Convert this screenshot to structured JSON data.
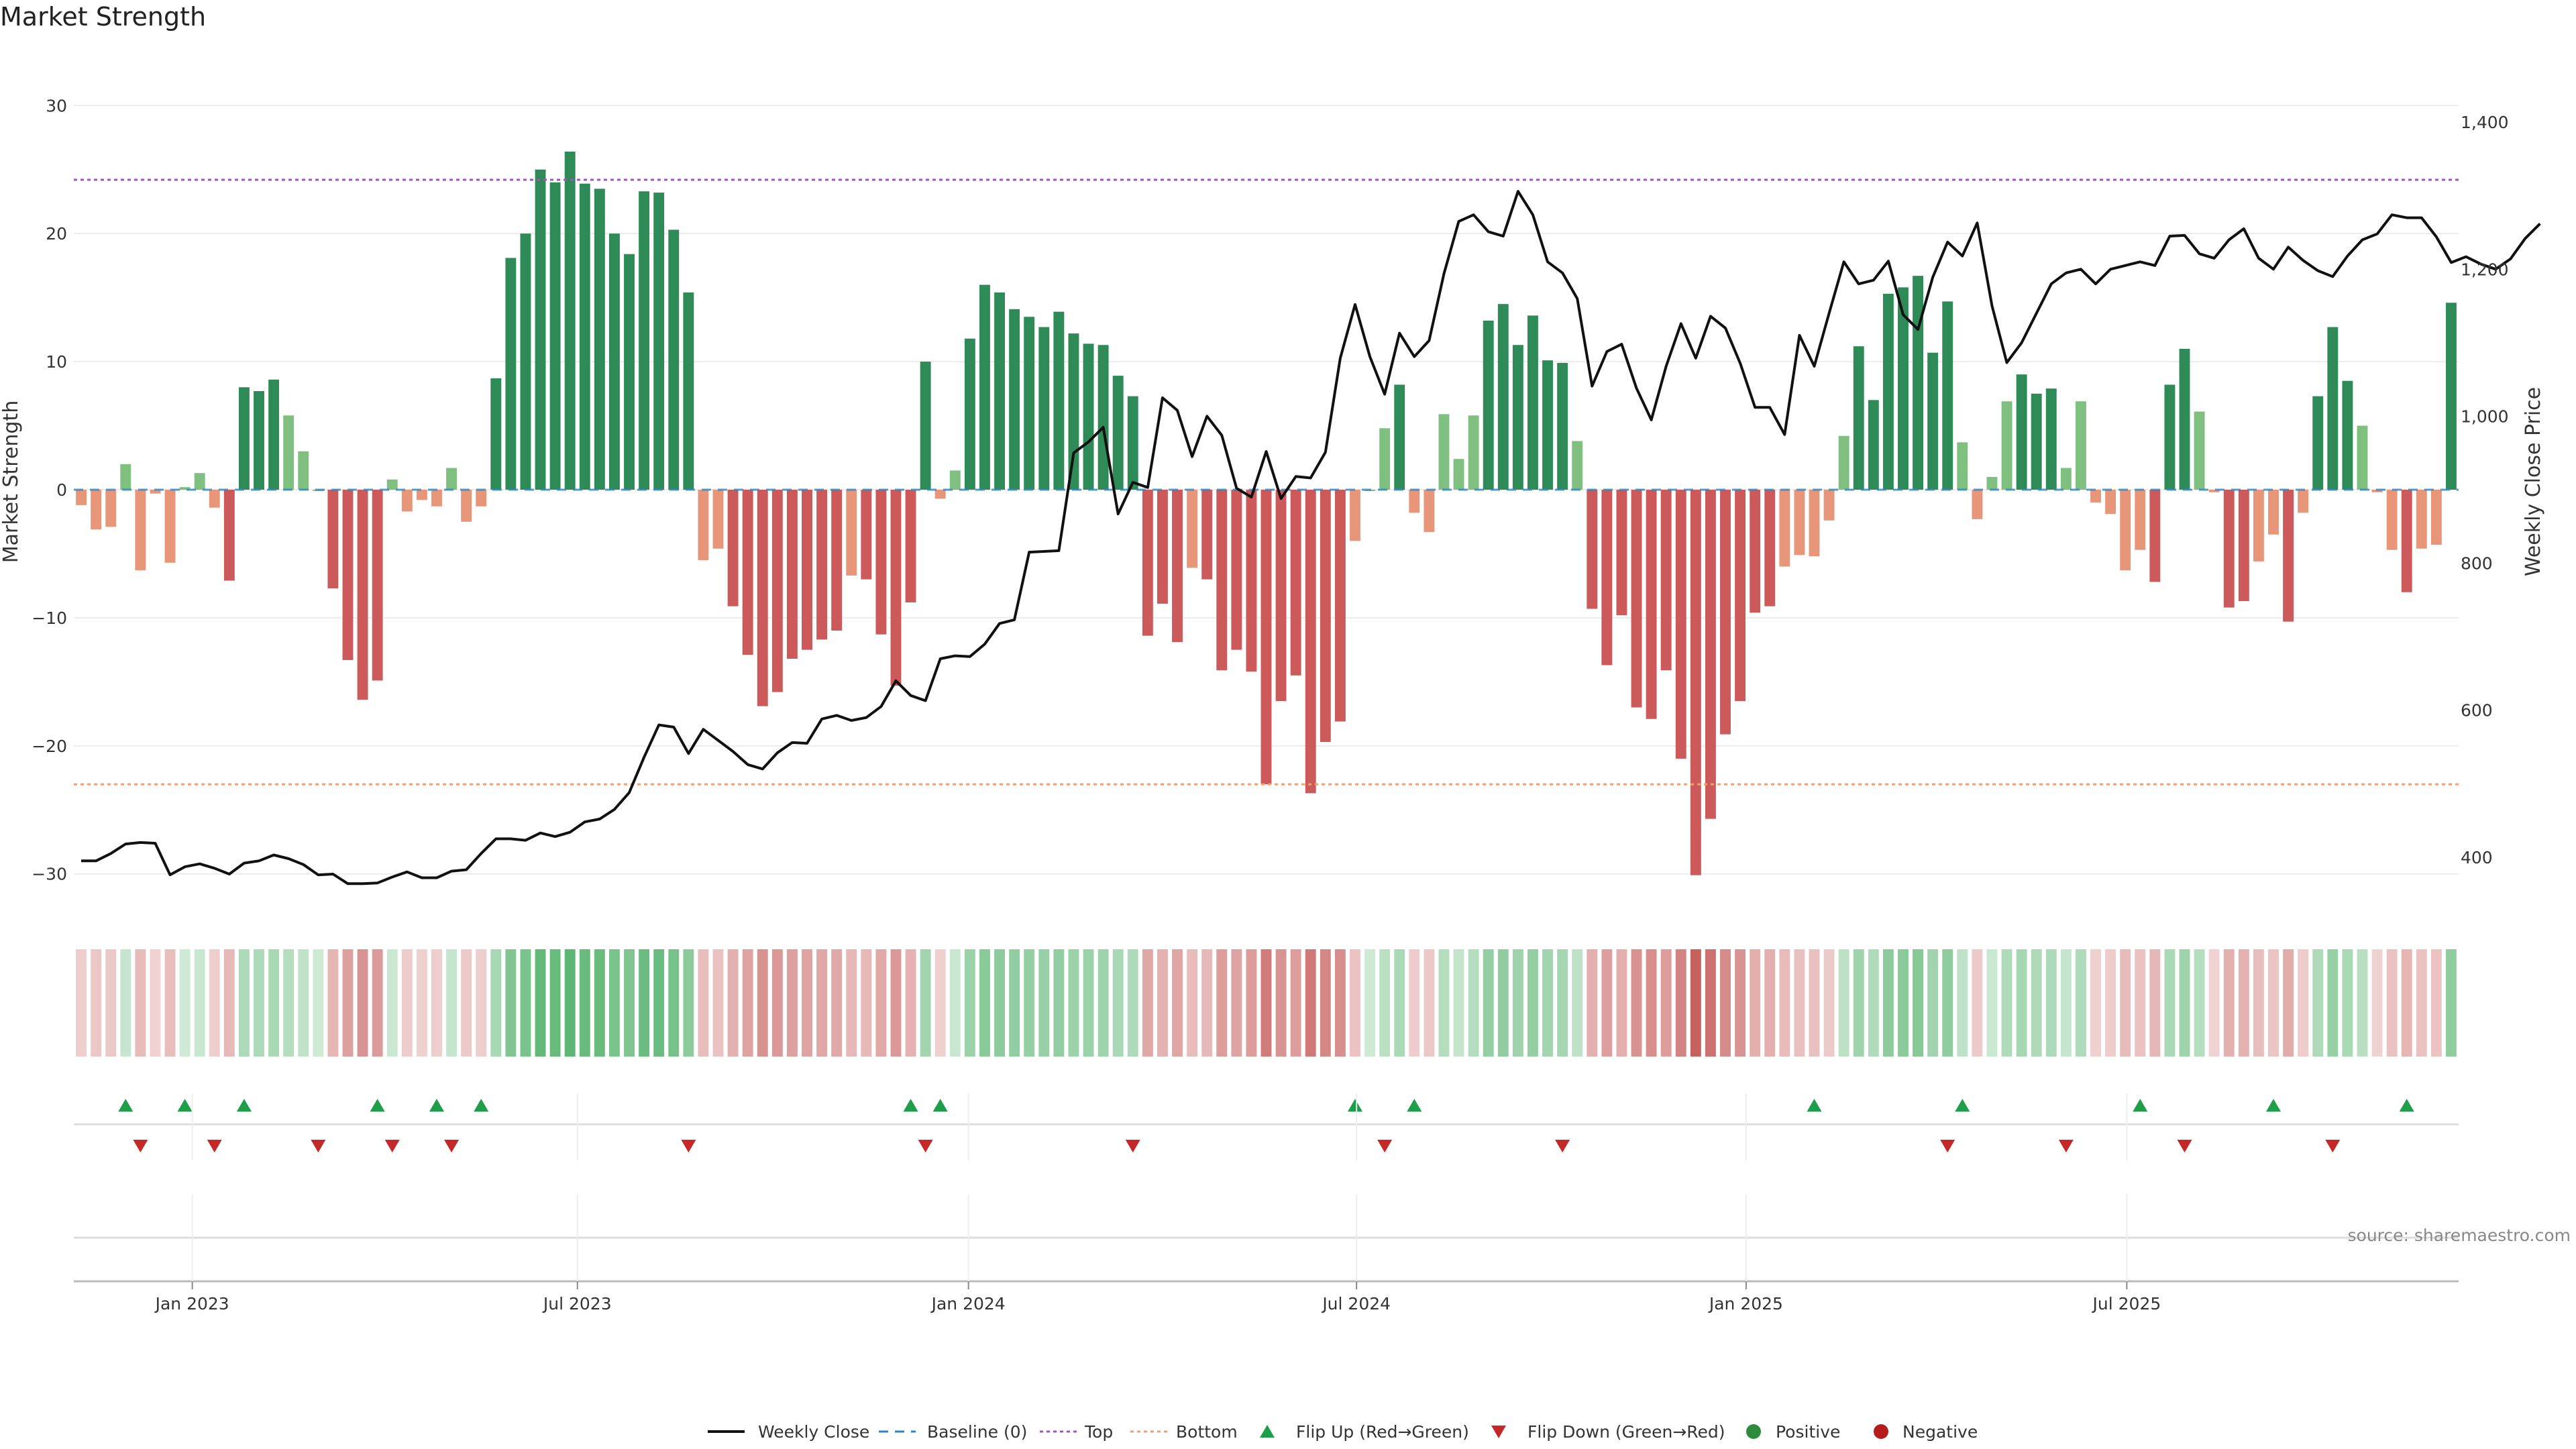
{
  "chart_data": {
    "title": "Market Strength",
    "type": "bar",
    "ylabel_left": "Market Strength",
    "ylabel_right": "Weekly Close Price",
    "ylim_left": [
      -33,
      33
    ],
    "ylim_right": [
      325,
      1475
    ],
    "yticks_left": [
      30,
      20,
      10,
      0,
      -10,
      -20,
      -30
    ],
    "yticks_left_labels": [
      "30",
      "20",
      "10",
      "0",
      "−10",
      "−20",
      "−30"
    ],
    "yticks_right": [
      1400,
      1200,
      1000,
      800,
      600,
      400
    ],
    "yticks_right_labels": [
      "1,400",
      "1,200",
      "1,000",
      "800",
      "600",
      "400"
    ],
    "x_tick_labels": [
      "Jan 2023",
      "Jul 2023",
      "Jan 2024",
      "Jul 2024",
      "Jan 2025",
      "Jul 2025"
    ],
    "x_tick_weeks": [
      8,
      34,
      60.4,
      86.6,
      112.9,
      138.6
    ],
    "top_line": 24.2,
    "bottom_line": -23,
    "strength_values": [
      -1.2,
      -3.1,
      -2.9,
      2.0,
      -6.3,
      -0.3,
      -5.7,
      0.2,
      1.3,
      -1.4,
      -7.1,
      8.0,
      7.7,
      8.6,
      5.8,
      3.0,
      0,
      -7.7,
      -13.3,
      -16.4,
      -14.9,
      0.8,
      -1.7,
      -0.8,
      -1.3,
      1.7,
      -2.5,
      -1.3,
      8.7,
      18.1,
      20.0,
      25.0,
      24.0,
      26.4,
      23.9,
      23.5,
      20.0,
      18.4,
      23.3,
      23.2,
      20.3,
      15.4,
      -5.5,
      -4.6,
      -9.1,
      -12.9,
      -16.9,
      -15.8,
      -13.2,
      -12.5,
      -11.7,
      -11.0,
      -6.7,
      -7.0,
      -11.3,
      -15.3,
      -8.8,
      10.0,
      -0.7,
      1.5,
      11.8,
      16.0,
      15.4,
      14.1,
      13.5,
      12.7,
      13.9,
      12.2,
      11.4,
      11.3,
      8.9,
      7.3,
      -11.4,
      -8.9,
      -11.9,
      -6.1,
      -7.0,
      -14.1,
      -12.5,
      -14.2,
      -23.0,
      -16.5,
      -14.5,
      -23.7,
      -19.7,
      -18.1,
      -4.0,
      0,
      4.8,
      8.2,
      -1.8,
      -3.3,
      5.9,
      2.4,
      5.8,
      13.2,
      14.5,
      11.3,
      13.6,
      10.1,
      9.9,
      3.8,
      -9.3,
      -13.7,
      -9.8,
      -17.0,
      -17.9,
      -14.1,
      -21.0,
      -30.1,
      -25.7,
      -19.1,
      -16.5,
      -9.6,
      -9.1,
      -6.0,
      -5.1,
      -5.2,
      -2.4,
      4.2,
      11.2,
      7.0,
      15.3,
      15.8,
      16.7,
      10.7,
      14.7,
      3.7,
      -2.3,
      1.0,
      6.9,
      9.0,
      7.5,
      7.9,
      1.7,
      6.9,
      -1.0,
      -1.9,
      -6.3,
      -4.7,
      -7.2,
      8.2,
      11.0,
      6.1,
      -0.2,
      -9.2,
      -8.7,
      -5.6,
      -3.5,
      -10.3,
      -1.8,
      7.3,
      12.7,
      8.5,
      5.0,
      -0.2,
      -4.7,
      -8.0,
      -4.6,
      -4.3,
      14.6
    ],
    "weekly_close": [
      395,
      395,
      405,
      418,
      420,
      419,
      376,
      387,
      391,
      385,
      377,
      392,
      395,
      403,
      398,
      390,
      376,
      377,
      364,
      364,
      365,
      373,
      380,
      372,
      372,
      381,
      383,
      405,
      425,
      425,
      423,
      433,
      428,
      434,
      448,
      452,
      465,
      488,
      536,
      580,
      577,
      541,
      574,
      559,
      544,
      526,
      520,
      542,
      556,
      555,
      588,
      593,
      586,
      590,
      605,
      640,
      620,
      613,
      670,
      674,
      673,
      690,
      718,
      723,
      815,
      816,
      817,
      950,
      965,
      985,
      867,
      910,
      903,
      1025,
      1008,
      945,
      1000,
      974,
      902,
      890,
      952,
      888,
      918,
      916,
      951,
      1079,
      1152,
      1081,
      1030,
      1113,
      1081,
      1103,
      1194,
      1265,
      1274,
      1251,
      1245,
      1306,
      1274,
      1210,
      1195,
      1160,
      1041,
      1088,
      1098,
      1038,
      995,
      1068,
      1126,
      1079,
      1136,
      1120,
      1072,
      1012,
      1012,
      975,
      1110,
      1068,
      1140,
      1210,
      1180,
      1185,
      1211,
      1138,
      1118,
      1189,
      1237,
      1218,
      1263,
      1150,
      1073,
      1100,
      1140,
      1180,
      1195,
      1200,
      1180,
      1200,
      1205,
      1210,
      1205,
      1245,
      1246,
      1221,
      1215,
      1240,
      1255,
      1215,
      1200,
      1230,
      1212,
      1198,
      1190,
      1218,
      1240,
      1248,
      1274,
      1270,
      1270,
      1244,
      1209,
      1217,
      1207,
      1200,
      1214,
      1242,
      1262
    ],
    "flip_up_weeks": [
      3,
      7,
      11,
      20,
      24,
      27,
      56,
      58,
      86,
      90,
      117,
      127,
      139,
      148,
      157
    ],
    "flip_down_weeks": [
      4,
      9,
      16,
      21,
      25,
      41,
      57,
      71,
      88,
      100,
      126,
      134,
      142,
      152
    ],
    "series": [
      {
        "name": "Weekly Close",
        "style": "line",
        "color": "#111111"
      },
      {
        "name": "Baseline (0)",
        "style": "dash",
        "color": "#2e86c1"
      },
      {
        "name": "Top",
        "style": "dot",
        "color": "#9b59b6"
      },
      {
        "name": "Bottom",
        "style": "dot",
        "color": "#f0a070"
      },
      {
        "name": "Flip Up (Red→Green)",
        "style": "triangle-up",
        "color": "#1e9e48"
      },
      {
        "name": "Flip Down (Green→Red)",
        "style": "triangle-down",
        "color": "#c62828"
      },
      {
        "name": "Positive",
        "style": "circle",
        "color": "#2e8b3e"
      },
      {
        "name": "Negative",
        "style": "circle",
        "color": "#b71c1c"
      }
    ],
    "legend_position": "bottom-center",
    "grid": true,
    "source_note": "source: sharemaestro.com"
  },
  "colors": {
    "positive_strong": "#2e8b57",
    "positive_weak": "#7fbf7f",
    "negative_strong": "#cc5a5a",
    "negative_weak": "#e8967a"
  }
}
